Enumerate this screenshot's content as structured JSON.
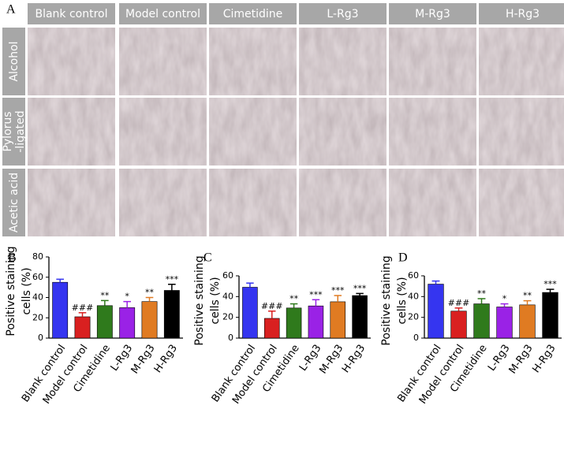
{
  "panel_a": {
    "label": "A",
    "columns": [
      "Blank control",
      "Model control",
      "Cimetidine",
      "L-Rg3",
      "M-Rg3",
      "H-Rg3"
    ],
    "rows": [
      "Alcohol",
      "Pylorus\n-ligated",
      "Acetic acid"
    ]
  },
  "chart_data": [
    {
      "type": "bar",
      "panel": "B",
      "ylabel": [
        "Positive staining",
        "cells (%)"
      ],
      "categories": [
        "Blank control",
        "Model control",
        "Cimetidine",
        "L-Rg3",
        "M-Rg3",
        "H-Rg3"
      ],
      "values": [
        55,
        21,
        32,
        30,
        36,
        47
      ],
      "errors": [
        3,
        4,
        5,
        6,
        4,
        6
      ],
      "annotations": [
        null,
        "###",
        "**",
        "*",
        "**",
        "***"
      ],
      "colors": [
        "#3535f0",
        "#d92020",
        "#2f7a1c",
        "#9a22e6",
        "#e07b22",
        "#000000"
      ],
      "ylim": [
        0,
        80
      ],
      "yticks": [
        0,
        20,
        40,
        60,
        80
      ]
    },
    {
      "type": "bar",
      "panel": "C",
      "ylabel": [
        "Positive staining",
        "cells (%)"
      ],
      "categories": [
        "Blank control",
        "Model control",
        "Cimetidine",
        "L-Rg3",
        "M-Rg3",
        "H-Rg3"
      ],
      "values": [
        49,
        19,
        29,
        31,
        35,
        41
      ],
      "errors": [
        4,
        7,
        4,
        6,
        6,
        2
      ],
      "annotations": [
        null,
        "###",
        "**",
        "***",
        "***",
        "***"
      ],
      "colors": [
        "#3535f0",
        "#d92020",
        "#2f7a1c",
        "#9a22e6",
        "#e07b22",
        "#000000"
      ],
      "ylim": [
        0,
        60
      ],
      "yticks": [
        0,
        20,
        40,
        60
      ]
    },
    {
      "type": "bar",
      "panel": "D",
      "ylabel": [
        "Positive staining",
        "cells (%)"
      ],
      "categories": [
        "Blank control",
        "Model control",
        "Cimetidine",
        "L-Rg3",
        "M-Rg3",
        "H-Rg3"
      ],
      "values": [
        52,
        26,
        33,
        30,
        32,
        44
      ],
      "errors": [
        3,
        3,
        5,
        3,
        4,
        3
      ],
      "annotations": [
        null,
        "###",
        "**",
        "*",
        "**",
        "***"
      ],
      "colors": [
        "#3535f0",
        "#d92020",
        "#2f7a1c",
        "#9a22e6",
        "#e07b22",
        "#000000"
      ],
      "ylim": [
        0,
        60
      ],
      "yticks": [
        0,
        20,
        40,
        60
      ]
    }
  ]
}
